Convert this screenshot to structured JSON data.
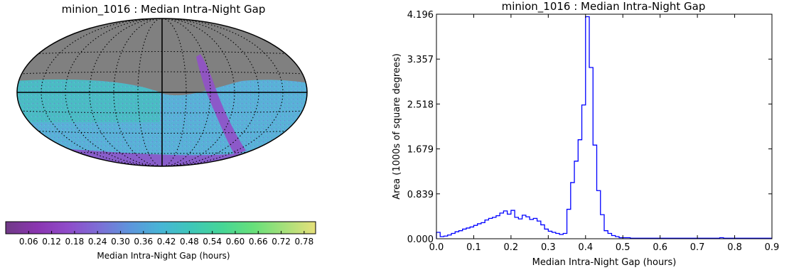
{
  "chart_data": [
    {
      "type": "heatmap",
      "projection": "mollweide sky map",
      "title": "minion_1016 : Median Intra-Night Gap",
      "colorbar": {
        "label": "Median Intra-Night Gap (hours)",
        "ticks": [
          "0.06",
          "0.12",
          "0.18",
          "0.24",
          "0.30",
          "0.36",
          "0.42",
          "0.48",
          "0.54",
          "0.60",
          "0.66",
          "0.72",
          "0.78"
        ],
        "range": [
          0.0,
          0.81
        ],
        "colors": [
          "#703a87",
          "#8a35b0",
          "#8f4bc9",
          "#7d6ed6",
          "#5d95dc",
          "#47b5d6",
          "#3ec7b8",
          "#46d696",
          "#67e07a",
          "#a6e07a",
          "#e6e07a"
        ]
      },
      "colors": {
        "masked": "#808080",
        "sky_main": "#5ab0d8",
        "sky_patch": "#40c4b4",
        "plane": "#9150c8"
      }
    },
    {
      "type": "histogram",
      "title": "minion_1016 : Median Intra-Night Gap",
      "xlabel": "Median Intra-Night Gap (hours)",
      "ylabel": "Area (1000s of square degrees)",
      "xlim": [
        0.0,
        0.9
      ],
      "ylim": [
        0.0,
        4.196
      ],
      "xticks": [
        "0.0",
        "0.1",
        "0.2",
        "0.3",
        "0.4",
        "0.5",
        "0.6",
        "0.7",
        "0.8",
        "0.9"
      ],
      "yticks": [
        "0.000",
        "0.839",
        "1.679",
        "2.518",
        "3.357",
        "4.196"
      ],
      "color": "#0000ff",
      "bin_width": 0.01,
      "bin_start": 0.0,
      "values": [
        0.12,
        0.04,
        0.05,
        0.07,
        0.1,
        0.13,
        0.15,
        0.18,
        0.2,
        0.22,
        0.25,
        0.28,
        0.3,
        0.35,
        0.38,
        0.4,
        0.43,
        0.48,
        0.52,
        0.46,
        0.53,
        0.4,
        0.37,
        0.44,
        0.41,
        0.36,
        0.38,
        0.33,
        0.26,
        0.18,
        0.14,
        0.12,
        0.1,
        0.08,
        0.1,
        0.55,
        1.05,
        1.45,
        1.85,
        2.5,
        4.15,
        3.2,
        1.75,
        0.9,
        0.45,
        0.15,
        0.1,
        0.06,
        0.04,
        0.02,
        0.02,
        0.02,
        0.01,
        0.01,
        0.01,
        0.01,
        0.01,
        0.01,
        0.01,
        0.01,
        0.01,
        0.01,
        0.01,
        0.01,
        0.01,
        0.01,
        0.01,
        0.01,
        0.01,
        0.01,
        0.01,
        0.01,
        0.01,
        0.01,
        0.01,
        0.01,
        0.02,
        0.01,
        0.01,
        0.01,
        0.01,
        0.01,
        0.01,
        0.01,
        0.01,
        0.01,
        0.01,
        0.01,
        0.01,
        0.01
      ]
    }
  ]
}
